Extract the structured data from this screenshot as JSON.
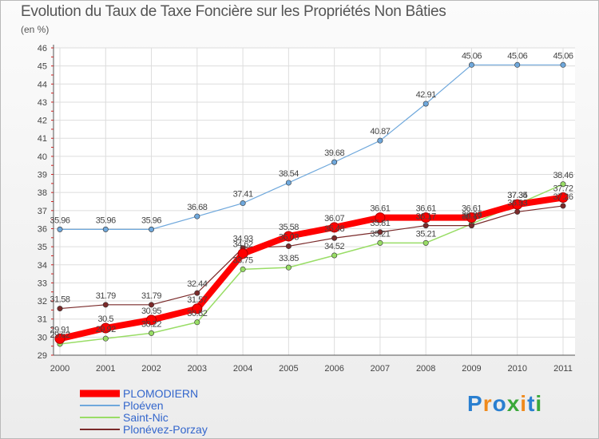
{
  "title": "Evolution du Taux de Taxe Foncière sur les Propriétés Non Bâties",
  "subtitle": "(en %)",
  "logo": "Proxiti",
  "chart_data": {
    "type": "line",
    "x": [
      "2000",
      "2001",
      "2002",
      "2003",
      "2004",
      "2005",
      "2006",
      "2007",
      "2008",
      "2009",
      "2010",
      "2011"
    ],
    "ylim": [
      29,
      46
    ],
    "yticks": [
      29,
      30,
      31,
      32,
      33,
      34,
      35,
      36,
      37,
      38,
      39,
      40,
      41,
      42,
      43,
      44,
      45,
      46
    ],
    "grid": true,
    "legend_position": "bottom-left",
    "series": [
      {
        "name": "PLOMODIERN",
        "color": "#ff0000",
        "values": [
          29.91,
          30.5,
          30.95,
          31.57,
          34.62,
          35.58,
          36.07,
          36.61,
          36.61,
          36.61,
          37.34,
          37.72
        ],
        "labels": [
          "29.91",
          "30.5",
          "30.95",
          "31.57",
          "34.62",
          "35.58",
          "36.07",
          "36.61",
          "36.61",
          "36.61",
          "37.34",
          "37.72"
        ]
      },
      {
        "name": "Ploéven",
        "color": "#6fa8dc",
        "values": [
          35.96,
          35.96,
          35.96,
          36.68,
          37.41,
          38.54,
          39.68,
          40.87,
          42.91,
          45.06,
          45.06,
          45.06
        ],
        "labels": [
          "35.96",
          "35.96",
          "35.96",
          "36.68",
          "37.41",
          "38.54",
          "39.68",
          "40.87",
          "42.91",
          "45.06",
          "45.06",
          "45.06"
        ]
      },
      {
        "name": "Saint-Nic",
        "color": "#99dd66",
        "values": [
          29.62,
          29.92,
          30.22,
          30.82,
          33.75,
          33.85,
          34.52,
          35.21,
          35.21,
          36.26,
          37.35,
          38.46
        ],
        "labels": [
          "29.62",
          "29.92",
          "30.22",
          "30.82",
          "33.75",
          "33.85",
          "34.52",
          "35.21",
          "35.21",
          "36.26",
          "37.35",
          "38.46"
        ]
      },
      {
        "name": "Plonévez-Porzay",
        "color": "#7a2a2a",
        "values": [
          31.58,
          31.79,
          31.79,
          32.44,
          34.93,
          35.03,
          35.48,
          35.81,
          36.17,
          36.17,
          36.93,
          37.26
        ],
        "labels": [
          "31.58",
          "31.79",
          "31.79",
          "32.44",
          "34.93",
          "35.03",
          "35.48",
          "35.81",
          "36.17",
          "36.17",
          "36.93",
          "37.26"
        ]
      }
    ]
  }
}
